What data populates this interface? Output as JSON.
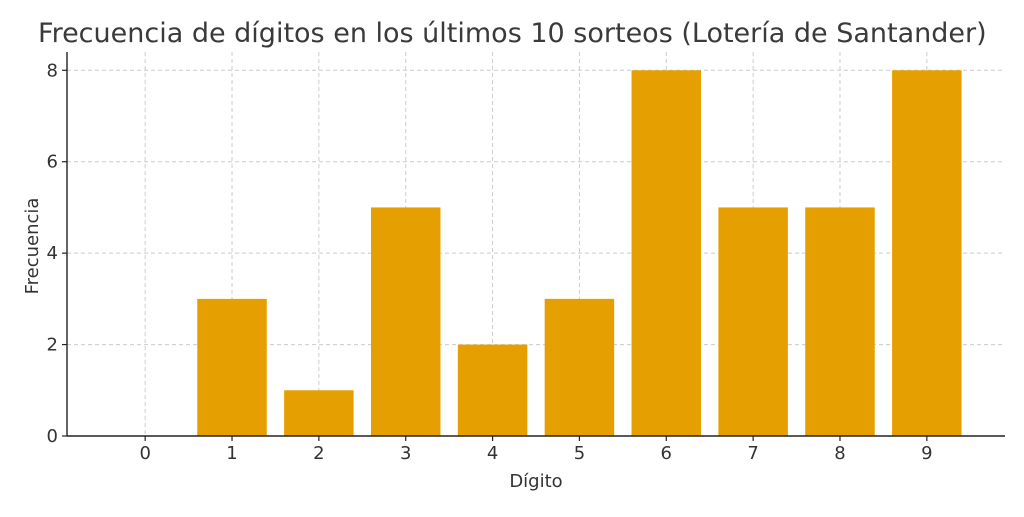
{
  "chart_data": {
    "type": "bar",
    "title": "Frecuencia de dígitos en los últimos 10 sorteos (Lotería de Santander)",
    "xlabel": "Dígito",
    "ylabel": "Frecuencia",
    "categories": [
      "0",
      "1",
      "2",
      "3",
      "4",
      "5",
      "6",
      "7",
      "8",
      "9"
    ],
    "values": [
      0,
      3,
      1,
      5,
      2,
      3,
      8,
      5,
      5,
      8
    ],
    "yticks": [
      0,
      2,
      4,
      6,
      8
    ],
    "ylim": [
      0,
      8.4
    ],
    "grid": true,
    "bar_color": "#E69F00"
  }
}
